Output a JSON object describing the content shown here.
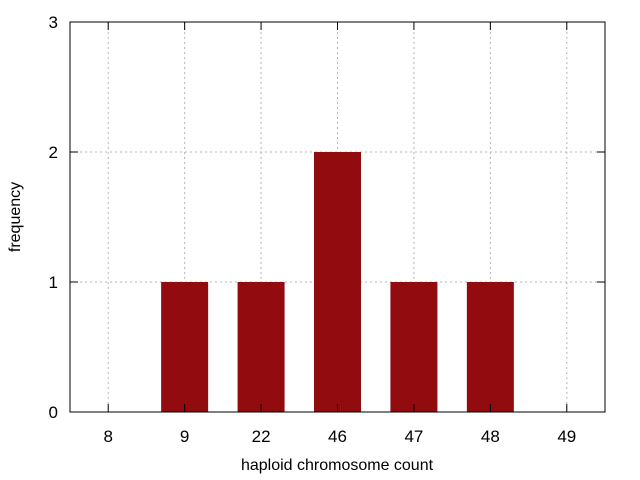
{
  "chart_data": {
    "type": "bar",
    "title": "",
    "xlabel": "haploid chromosome count",
    "ylabel": "frequency",
    "categories": [
      "8",
      "9",
      "22",
      "46",
      "47",
      "48",
      "49"
    ],
    "values": [
      0,
      1,
      1,
      2,
      1,
      1,
      0
    ],
    "ylim": [
      0,
      3
    ],
    "yticks": [
      "0",
      "1",
      "2",
      "3"
    ],
    "grid": true,
    "legend": "none",
    "bar_color": "#920b0e",
    "grid_color": "#b4b4b4"
  }
}
